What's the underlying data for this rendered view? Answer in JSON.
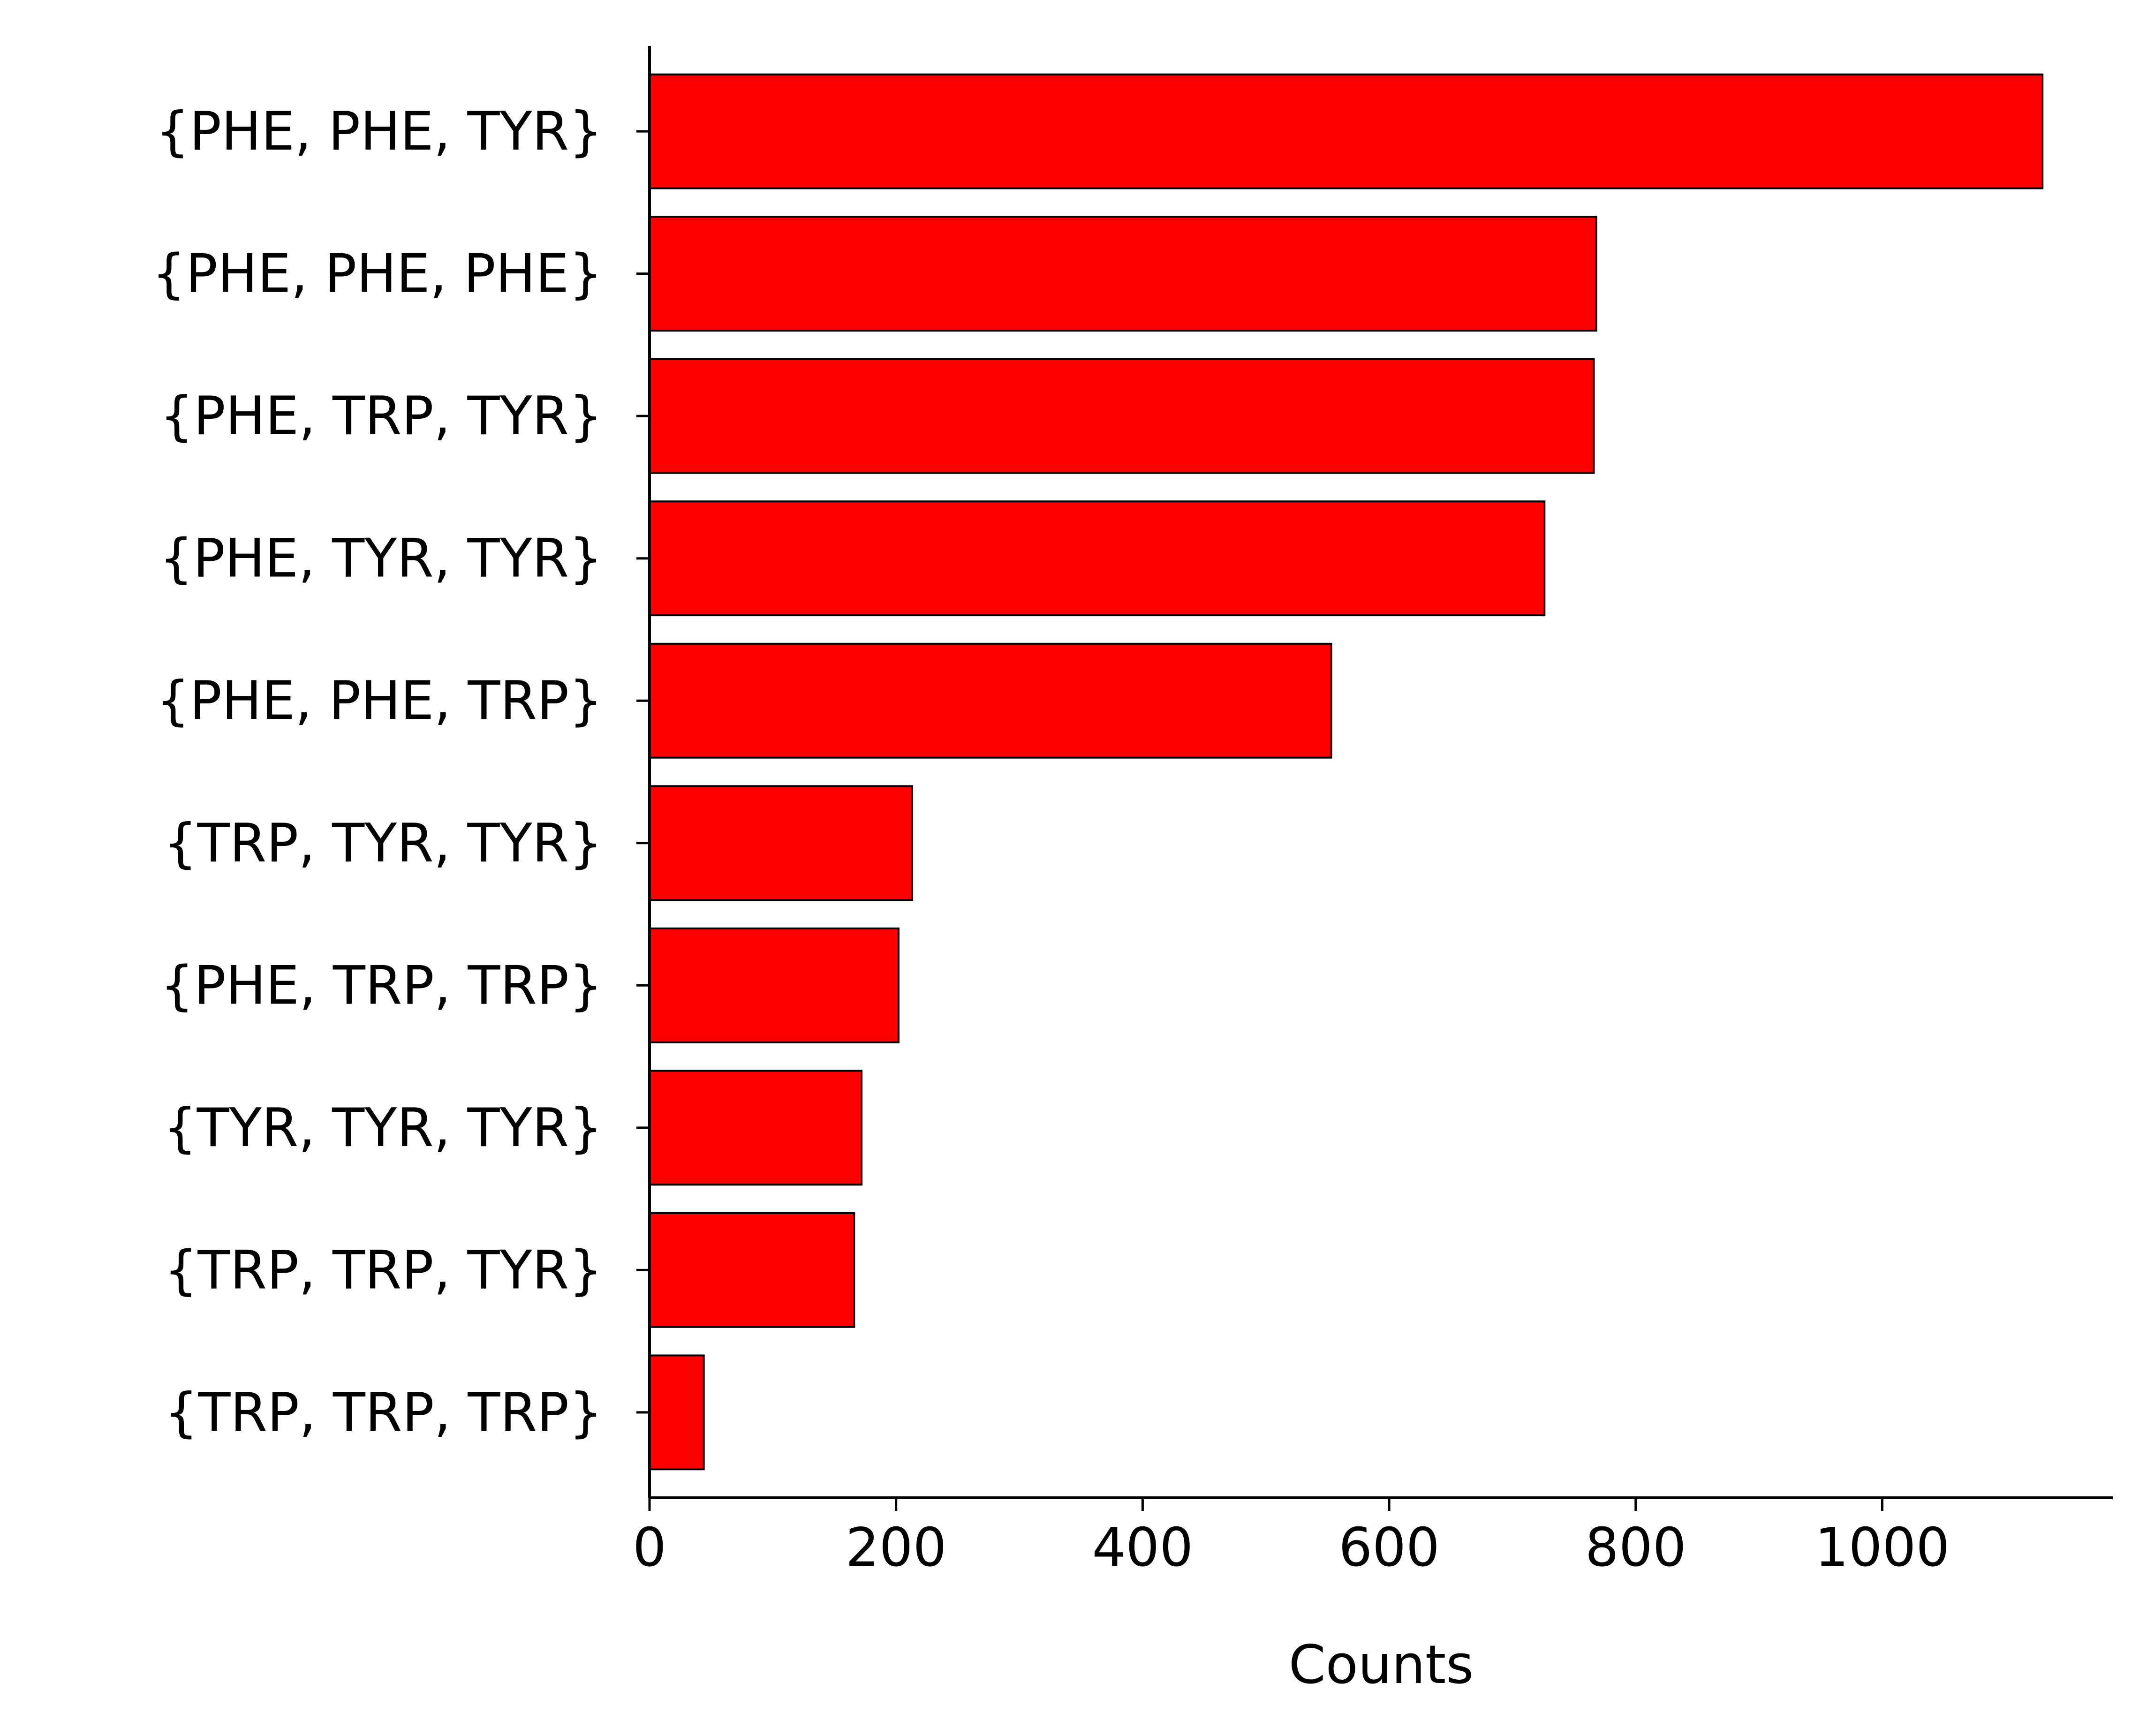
{
  "chart_data": {
    "type": "bar",
    "orientation": "horizontal",
    "categories": [
      "{PHE, PHE, TYR}",
      "{PHE, PHE, PHE}",
      "{PHE, TRP, TYR}",
      "{PHE, TYR, TYR}",
      "{PHE, PHE, TRP}",
      "{TRP, TYR, TYR}",
      "{PHE, TRP, TRP}",
      "{TYR, TYR, TYR}",
      "{TRP, TRP, TYR}",
      "{TRP, TRP, TRP}"
    ],
    "values": [
      1130,
      768,
      766,
      726,
      553,
      213,
      202,
      172,
      166,
      44
    ],
    "title": "",
    "xlabel": "Counts",
    "ylabel": "",
    "xlim": [
      0,
      1187
    ],
    "xticks": [
      0,
      200,
      400,
      600,
      800,
      1000
    ],
    "grid": false,
    "legend": "none",
    "bar_color": "#ff0000",
    "edge_color": "#000000"
  }
}
